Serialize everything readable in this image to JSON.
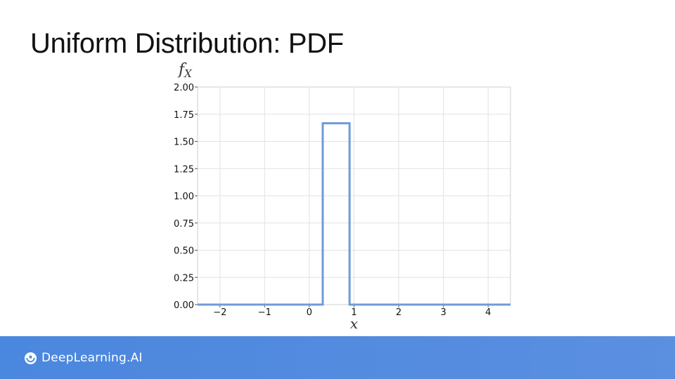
{
  "slide": {
    "title": "Uniform Distribution: PDF"
  },
  "chart_data": {
    "type": "line",
    "title": "",
    "xlabel": "x",
    "ylabel_main": "f",
    "ylabel_sub": "X",
    "xlim": [
      -2.5,
      4.5
    ],
    "ylim": [
      0,
      2
    ],
    "x_ticks": [
      -2,
      -1,
      0,
      1,
      2,
      3,
      4
    ],
    "x_tick_labels": [
      "−2",
      "−1",
      "0",
      "1",
      "2",
      "3",
      "4"
    ],
    "y_ticks": [
      0,
      0.25,
      0.5,
      0.75,
      1.0,
      1.25,
      1.5,
      1.75,
      2.0
    ],
    "y_tick_labels": [
      "0.00",
      "0.25",
      "0.50",
      "0.75",
      "1.00",
      "1.25",
      "1.50",
      "1.75",
      "2.00"
    ],
    "grid": true,
    "series": [
      {
        "color": "#6f9bd8",
        "x": [
          -2.5,
          0.3,
          0.3,
          0.9,
          0.9,
          4.5
        ],
        "y": [
          0,
          0,
          1.667,
          1.667,
          0,
          0
        ]
      }
    ]
  },
  "footer": {
    "brand": "DeepLearning.AI",
    "icon": "deeplearning-logo-icon"
  }
}
